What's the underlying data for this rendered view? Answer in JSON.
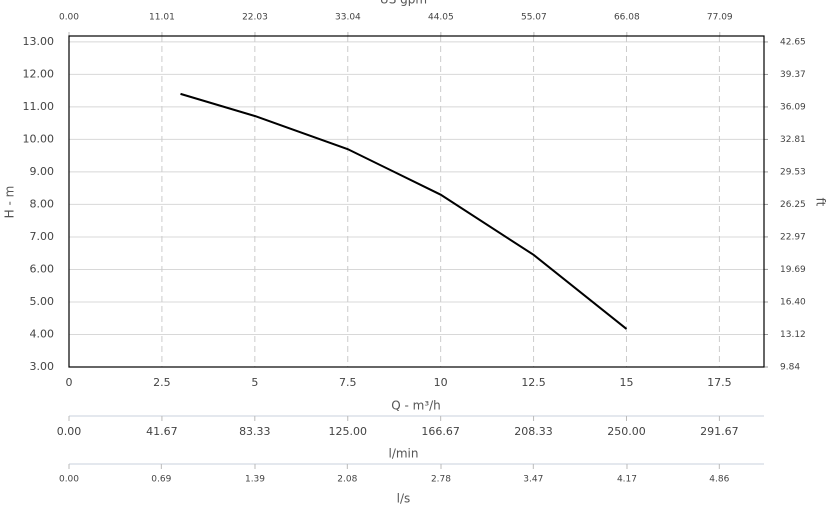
{
  "chart_data": {
    "type": "line",
    "x": [
      3,
      5,
      7.5,
      10,
      12.5,
      15
    ],
    "series": [
      {
        "color": "#000000",
        "values": [
          11.4,
          10.72,
          9.7,
          8.3,
          6.45,
          4.17
        ]
      }
    ],
    "xlim": [
      0,
      18.7
    ],
    "xticks": [
      0,
      2.5,
      5,
      7.5,
      10,
      12.5,
      15,
      17.5
    ],
    "xlabel": "Q - m³/h",
    "x2lim": [
      0,
      82.33
    ],
    "x2ticks": [
      {
        "value": 0,
        "label": "0.00"
      },
      11.01,
      22.03,
      33.04,
      44.05,
      55.07,
      66.08,
      77.09
    ],
    "x2label": "US gpm",
    "x3lim": [
      0,
      311.67
    ],
    "x3ticks": [
      {
        "value": 0,
        "label": "0.00"
      },
      41.67,
      83.33,
      {
        "value": 125,
        "label": "125.00"
      },
      166.67,
      208.33,
      {
        "value": 250,
        "label": "250.00"
      },
      291.67
    ],
    "x3label": "l/min",
    "x4lim": [
      0,
      5.194
    ],
    "x4ticks": [
      {
        "value": 0,
        "label": "0.00"
      },
      0.69,
      1.39,
      2.08,
      2.78,
      3.47,
      4.17,
      4.86
    ],
    "x4label": "l/s",
    "ylim": [
      3,
      13.18
    ],
    "yticks": [
      {
        "value": 3,
        "label": "3.00"
      },
      {
        "value": 4,
        "label": "4.00"
      },
      {
        "value": 5,
        "label": "5.00"
      },
      {
        "value": 6,
        "label": "6.00"
      },
      {
        "value": 7,
        "label": "7.00"
      },
      {
        "value": 8,
        "label": "8.00"
      },
      {
        "value": 9,
        "label": "9.00"
      },
      {
        "value": 10,
        "label": "10.00"
      },
      {
        "value": 11,
        "label": "11.00"
      },
      {
        "value": 12,
        "label": "12.00"
      },
      {
        "value": 13,
        "label": "13.00"
      }
    ],
    "ylabel": "H - m",
    "y2lim": [
      9.84,
      43.25
    ],
    "y2ticks": [
      9.84,
      13.12,
      {
        "value": 16.4,
        "label": "16.40"
      },
      19.69,
      22.97,
      26.25,
      29.53,
      32.81,
      36.09,
      39.37,
      42.65
    ],
    "y2label": "ft",
    "grid": true
  }
}
